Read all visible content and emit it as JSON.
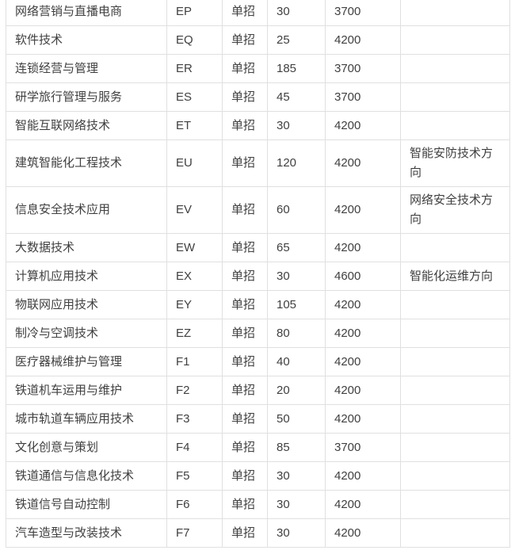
{
  "colors": {
    "border": "#e0e0e0",
    "text": "#404040",
    "background": "#ffffff"
  },
  "table": {
    "description": "major enrollment table (no header row visible)",
    "fields": [
      "major",
      "code",
      "method",
      "plan",
      "fee",
      "note"
    ],
    "rows": [
      {
        "major": "网络营销与直播电商",
        "code": "EP",
        "method": "单招",
        "plan": "30",
        "fee": "3700",
        "note": ""
      },
      {
        "major": "软件技术",
        "code": "EQ",
        "method": "单招",
        "plan": "25",
        "fee": "4200",
        "note": ""
      },
      {
        "major": "连锁经营与管理",
        "code": "ER",
        "method": "单招",
        "plan": "185",
        "fee": "3700",
        "note": ""
      },
      {
        "major": "研学旅行管理与服务",
        "code": "ES",
        "method": "单招",
        "plan": "45",
        "fee": "3700",
        "note": ""
      },
      {
        "major": "智能互联网络技术",
        "code": "ET",
        "method": "单招",
        "plan": "30",
        "fee": "4200",
        "note": ""
      },
      {
        "major": "建筑智能化工程技术",
        "code": "EU",
        "method": "单招",
        "plan": "120",
        "fee": "4200",
        "note": "智能安防技术方向"
      },
      {
        "major": "信息安全技术应用",
        "code": "EV",
        "method": "单招",
        "plan": "60",
        "fee": "4200",
        "note": "网络安全技术方向"
      },
      {
        "major": "大数据技术",
        "code": "EW",
        "method": "单招",
        "plan": "65",
        "fee": "4200",
        "note": ""
      },
      {
        "major": "计算机应用技术",
        "code": "EX",
        "method": "单招",
        "plan": "30",
        "fee": "4600",
        "note": "智能化运维方向"
      },
      {
        "major": "物联网应用技术",
        "code": "EY",
        "method": "单招",
        "plan": "105",
        "fee": "4200",
        "note": ""
      },
      {
        "major": "制冷与空调技术",
        "code": "EZ",
        "method": "单招",
        "plan": "80",
        "fee": "4200",
        "note": ""
      },
      {
        "major": "医疗器械维护与管理",
        "code": "F1",
        "method": "单招",
        "plan": "40",
        "fee": "4200",
        "note": ""
      },
      {
        "major": "铁道机车运用与维护",
        "code": "F2",
        "method": "单招",
        "plan": "20",
        "fee": "4200",
        "note": ""
      },
      {
        "major": "城市轨道车辆应用技术",
        "code": "F3",
        "method": "单招",
        "plan": "50",
        "fee": "4200",
        "note": ""
      },
      {
        "major": "文化创意与策划",
        "code": "F4",
        "method": "单招",
        "plan": "85",
        "fee": "3700",
        "note": ""
      },
      {
        "major": "铁道通信与信息化技术",
        "code": "F5",
        "method": "单招",
        "plan": "30",
        "fee": "4200",
        "note": ""
      },
      {
        "major": "铁道信号自动控制",
        "code": "F6",
        "method": "单招",
        "plan": "30",
        "fee": "4200",
        "note": ""
      },
      {
        "major": "汽车造型与改装技术",
        "code": "F7",
        "method": "单招",
        "plan": "30",
        "fee": "4200",
        "note": ""
      }
    ]
  }
}
